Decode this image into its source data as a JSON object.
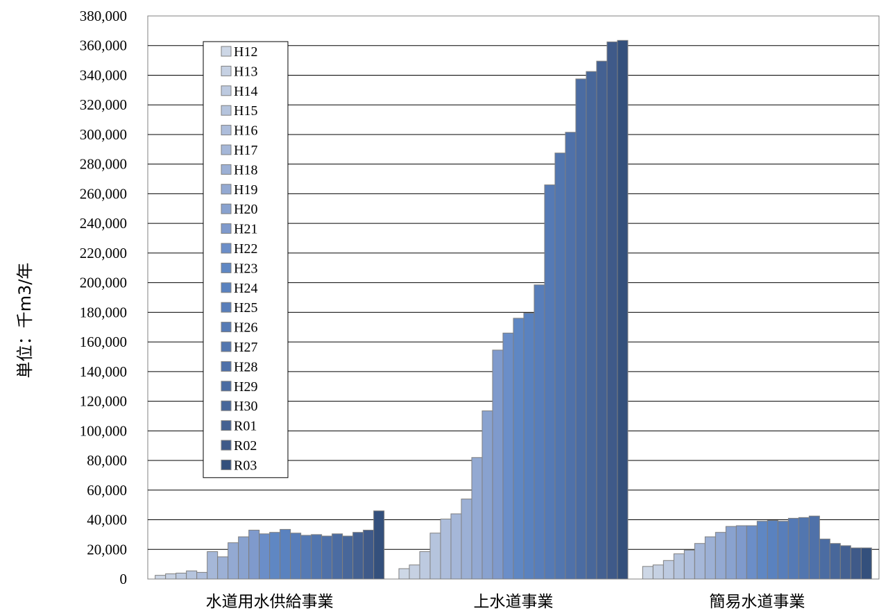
{
  "chart_data": {
    "type": "bar",
    "ylabel": "単位：千m3/年",
    "xlabel": "",
    "ylim": [
      0,
      380000
    ],
    "yticks": [
      "0",
      "20,000",
      "40,000",
      "60,000",
      "80,000",
      "100,000",
      "120,000",
      "140,000",
      "160,000",
      "180,000",
      "200,000",
      "220,000",
      "240,000",
      "260,000",
      "280,000",
      "300,000",
      "320,000",
      "340,000",
      "360,000",
      "380,000"
    ],
    "categories": [
      "水道用水供給事業",
      "上水道事業",
      "簡易水道事業"
    ],
    "grid": true,
    "legend_position": "upper-left inside plot",
    "series": [
      {
        "name": "H12",
        "color": "#cdd7e6",
        "values": [
          2500,
          7000,
          8500
        ]
      },
      {
        "name": "H13",
        "color": "#c6d1e3",
        "values": [
          3500,
          9500,
          9500
        ]
      },
      {
        "name": "H14",
        "color": "#bdcae0",
        "values": [
          4000,
          18500,
          12500
        ]
      },
      {
        "name": "H15",
        "color": "#b5c4dd",
        "values": [
          5500,
          31000,
          17000
        ]
      },
      {
        "name": "H16",
        "color": "#adbddb",
        "values": [
          4500,
          40500,
          19500
        ]
      },
      {
        "name": "H17",
        "color": "#a5b7d8",
        "values": [
          18500,
          44000,
          24000
        ]
      },
      {
        "name": "H18",
        "color": "#9cb0d5",
        "values": [
          15000,
          54000,
          28500
        ]
      },
      {
        "name": "H19",
        "color": "#93a9d2",
        "values": [
          24500,
          82000,
          31500
        ]
      },
      {
        "name": "H20",
        "color": "#89a2cf",
        "values": [
          28500,
          113500,
          35500
        ]
      },
      {
        "name": "H21",
        "color": "#7f9acc",
        "values": [
          33000,
          154500,
          36000
        ]
      },
      {
        "name": "H22",
        "color": "#6b8ec8",
        "values": [
          30500,
          166000,
          36000
        ]
      },
      {
        "name": "H23",
        "color": "#5f87c3",
        "values": [
          31500,
          176000,
          39000
        ]
      },
      {
        "name": "H24",
        "color": "#5a82bf",
        "values": [
          33500,
          179500,
          39500
        ]
      },
      {
        "name": "H25",
        "color": "#587eba",
        "values": [
          31000,
          198500,
          39000
        ]
      },
      {
        "name": "H26",
        "color": "#557ab5",
        "values": [
          29500,
          266000,
          41000
        ]
      },
      {
        "name": "H27",
        "color": "#5276af",
        "values": [
          30000,
          287500,
          41500
        ]
      },
      {
        "name": "H28",
        "color": "#4f71a9",
        "values": [
          29000,
          301500,
          42500
        ]
      },
      {
        "name": "H29",
        "color": "#4b6ca2",
        "values": [
          30500,
          337500,
          27000
        ]
      },
      {
        "name": "H30",
        "color": "#48679a",
        "values": [
          29000,
          342500,
          24000
        ]
      },
      {
        "name": "R01",
        "color": "#446192",
        "values": [
          31500,
          349500,
          22500
        ]
      },
      {
        "name": "R02",
        "color": "#3f5a89",
        "values": [
          33000,
          362500,
          21000
        ]
      },
      {
        "name": "R03",
        "color": "#34507c",
        "values": [
          46000,
          363500,
          21000
        ]
      }
    ]
  }
}
